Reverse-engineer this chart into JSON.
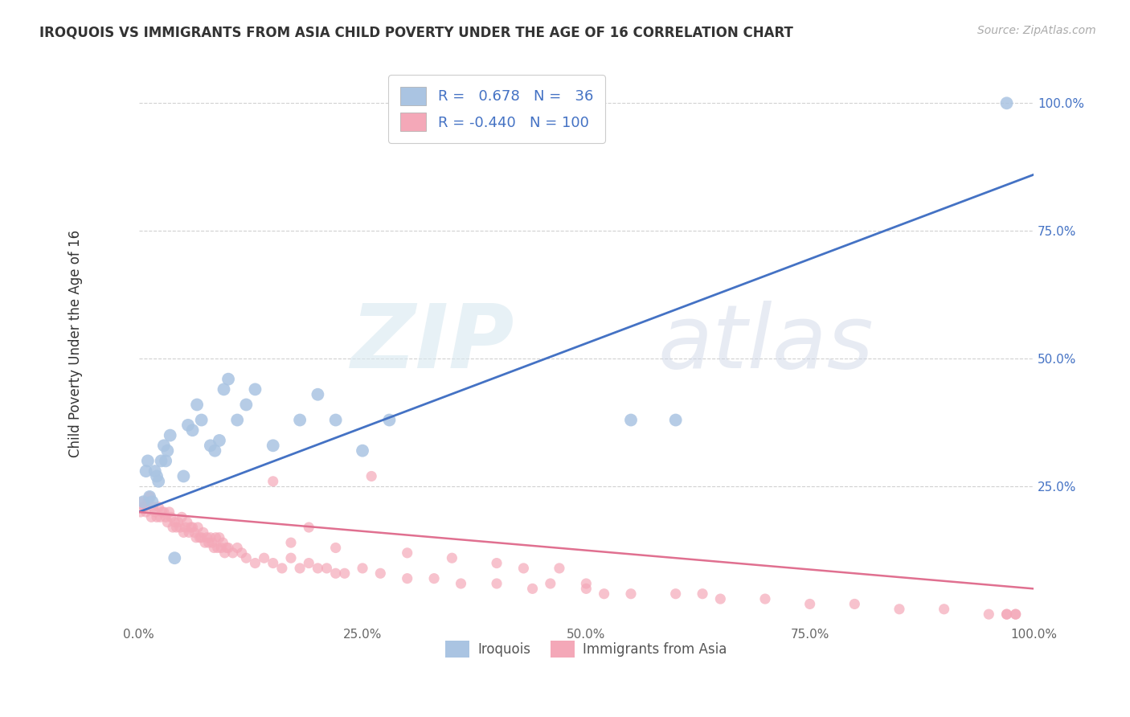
{
  "title": "IROQUOIS VS IMMIGRANTS FROM ASIA CHILD POVERTY UNDER THE AGE OF 16 CORRELATION CHART",
  "source": "Source: ZipAtlas.com",
  "ylabel": "Child Poverty Under the Age of 16",
  "xlim": [
    0.0,
    1.0
  ],
  "ylim": [
    -0.02,
    1.08
  ],
  "xtick_labels": [
    "0.0%",
    "25.0%",
    "50.0%",
    "75.0%",
    "100.0%"
  ],
  "xtick_vals": [
    0.0,
    0.25,
    0.5,
    0.75,
    1.0
  ],
  "ytick_labels": [
    "25.0%",
    "50.0%",
    "75.0%",
    "100.0%"
  ],
  "ytick_vals": [
    0.25,
    0.5,
    0.75,
    1.0
  ],
  "iroquois_color": "#aac4e2",
  "immigrants_color": "#f4a8b8",
  "iroquois_line_color": "#4472c4",
  "immigrants_line_color": "#e07090",
  "legend_iroquois_R": 0.678,
  "legend_iroquois_N": 36,
  "legend_immigrants_R": -0.44,
  "legend_immigrants_N": 100,
  "background_color": "#ffffff",
  "ytick_color": "#4472c4",
  "xtick_color": "#666666",
  "iroquois_scatter_x": [
    0.005,
    0.008,
    0.01,
    0.012,
    0.015,
    0.018,
    0.02,
    0.022,
    0.025,
    0.028,
    0.03,
    0.032,
    0.035,
    0.04,
    0.05,
    0.055,
    0.06,
    0.065,
    0.07,
    0.08,
    0.085,
    0.09,
    0.095,
    0.1,
    0.11,
    0.12,
    0.13,
    0.15,
    0.18,
    0.2,
    0.22,
    0.25,
    0.28,
    0.55,
    0.6,
    0.97
  ],
  "iroquois_scatter_y": [
    0.22,
    0.28,
    0.3,
    0.23,
    0.22,
    0.28,
    0.27,
    0.26,
    0.3,
    0.33,
    0.3,
    0.32,
    0.35,
    0.11,
    0.27,
    0.37,
    0.36,
    0.41,
    0.38,
    0.33,
    0.32,
    0.34,
    0.44,
    0.46,
    0.38,
    0.41,
    0.44,
    0.33,
    0.38,
    0.43,
    0.38,
    0.32,
    0.38,
    0.38,
    0.38,
    1.0
  ],
  "immigrants_scatter_x": [
    0.002,
    0.004,
    0.006,
    0.008,
    0.01,
    0.012,
    0.014,
    0.016,
    0.018,
    0.02,
    0.022,
    0.024,
    0.026,
    0.028,
    0.03,
    0.032,
    0.034,
    0.036,
    0.038,
    0.04,
    0.042,
    0.044,
    0.046,
    0.048,
    0.05,
    0.052,
    0.054,
    0.056,
    0.058,
    0.06,
    0.062,
    0.064,
    0.066,
    0.068,
    0.07,
    0.072,
    0.074,
    0.076,
    0.078,
    0.08,
    0.082,
    0.084,
    0.086,
    0.088,
    0.09,
    0.092,
    0.094,
    0.096,
    0.098,
    0.1,
    0.105,
    0.11,
    0.115,
    0.12,
    0.13,
    0.14,
    0.15,
    0.16,
    0.17,
    0.18,
    0.19,
    0.2,
    0.21,
    0.22,
    0.23,
    0.25,
    0.27,
    0.3,
    0.33,
    0.36,
    0.4,
    0.44,
    0.46,
    0.5,
    0.5,
    0.52,
    0.55,
    0.6,
    0.63,
    0.65,
    0.7,
    0.75,
    0.8,
    0.85,
    0.9,
    0.95,
    0.97,
    0.97,
    0.98,
    0.98,
    0.15,
    0.17,
    0.19,
    0.22,
    0.26,
    0.3,
    0.35,
    0.4,
    0.43,
    0.47
  ],
  "immigrants_scatter_y": [
    0.2,
    0.22,
    0.21,
    0.2,
    0.22,
    0.23,
    0.19,
    0.21,
    0.2,
    0.19,
    0.21,
    0.19,
    0.2,
    0.2,
    0.19,
    0.18,
    0.2,
    0.19,
    0.17,
    0.18,
    0.17,
    0.18,
    0.17,
    0.19,
    0.16,
    0.17,
    0.18,
    0.16,
    0.17,
    0.17,
    0.16,
    0.15,
    0.17,
    0.15,
    0.15,
    0.16,
    0.14,
    0.15,
    0.14,
    0.15,
    0.14,
    0.13,
    0.15,
    0.13,
    0.15,
    0.13,
    0.14,
    0.12,
    0.13,
    0.13,
    0.12,
    0.13,
    0.12,
    0.11,
    0.1,
    0.11,
    0.1,
    0.09,
    0.11,
    0.09,
    0.1,
    0.09,
    0.09,
    0.08,
    0.08,
    0.09,
    0.08,
    0.07,
    0.07,
    0.06,
    0.06,
    0.05,
    0.06,
    0.05,
    0.06,
    0.04,
    0.04,
    0.04,
    0.04,
    0.03,
    0.03,
    0.02,
    0.02,
    0.01,
    0.01,
    0.0,
    0.0,
    0.0,
    0.0,
    0.0,
    0.26,
    0.14,
    0.17,
    0.13,
    0.27,
    0.12,
    0.11,
    0.1,
    0.09,
    0.09
  ]
}
